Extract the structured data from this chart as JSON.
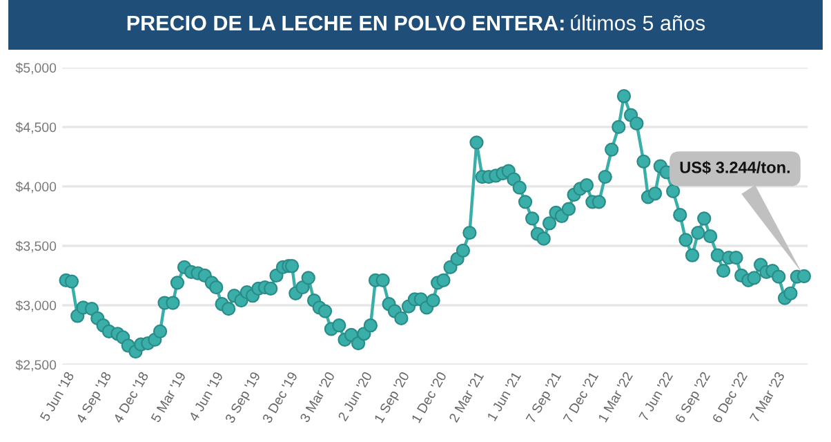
{
  "chart_data": {
    "type": "line",
    "title": "PRECIO DE LA LECHE EN POLVO ENTERA:",
    "subtitle": "últimos 5 años",
    "x": [
      "2018-06-05",
      "2018-06-19",
      "2018-07-03",
      "2018-07-17",
      "2018-08-07",
      "2018-08-21",
      "2018-09-04",
      "2018-09-18",
      "2018-10-09",
      "2018-10-22",
      "2018-11-04",
      "2018-11-22",
      "2018-12-05",
      "2018-12-22",
      "2019-01-08",
      "2019-01-21",
      "2019-02-01",
      "2019-02-21",
      "2019-03-04",
      "2019-03-21",
      "2019-04-07",
      "2019-04-23",
      "2019-05-10",
      "2019-05-27",
      "2019-06-07",
      "2019-06-21",
      "2019-07-07",
      "2019-07-21",
      "2019-08-07",
      "2019-08-21",
      "2019-09-04",
      "2019-09-18",
      "2019-10-04",
      "2019-10-18",
      "2019-11-01",
      "2019-11-17",
      "2019-12-01",
      "2019-12-09",
      "2019-12-18",
      "2020-01-04",
      "2020-01-18",
      "2020-02-01",
      "2020-02-14",
      "2020-02-28",
      "2020-03-14",
      "2020-04-02",
      "2020-04-16",
      "2020-05-02",
      "2020-05-19",
      "2020-06-02",
      "2020-06-18",
      "2020-06-30",
      "2020-07-18",
      "2020-08-02",
      "2020-08-16",
      "2020-09-01",
      "2020-09-19",
      "2020-10-04",
      "2020-10-19",
      "2020-11-02",
      "2020-11-18",
      "2020-11-29",
      "2020-12-13",
      "2020-12-30",
      "2021-01-16",
      "2021-01-30",
      "2021-02-15",
      "2021-03-04",
      "2021-03-18",
      "2021-04-03",
      "2021-04-20",
      "2021-05-07",
      "2021-05-21",
      "2021-06-03",
      "2021-06-17",
      "2021-07-01",
      "2021-07-18",
      "2021-07-31",
      "2021-08-15",
      "2021-08-29",
      "2021-09-14",
      "2021-09-28",
      "2021-10-15",
      "2021-10-28",
      "2021-11-12",
      "2021-11-28",
      "2021-12-12",
      "2021-12-28",
      "2022-01-12",
      "2022-01-28",
      "2022-02-14",
      "2022-02-27",
      "2022-03-16",
      "2022-03-30",
      "2022-04-16",
      "2022-04-27",
      "2022-05-14",
      "2022-05-27",
      "2022-06-11",
      "2022-06-27",
      "2022-07-14",
      "2022-07-28",
      "2022-08-13",
      "2022-08-27",
      "2022-09-11",
      "2022-09-26",
      "2022-10-14",
      "2022-10-28",
      "2022-11-10",
      "2022-11-28",
      "2022-12-11",
      "2022-12-28",
      "2023-01-11",
      "2023-01-27",
      "2023-02-10",
      "2023-02-25",
      "2023-03-12",
      "2023-03-27",
      "2023-04-10",
      "2023-04-26",
      "2023-05-13"
    ],
    "series": [
      {
        "color": "#3aaea9",
        "values": [
          3210,
          3200,
          2910,
          2980,
          2970,
          2890,
          2830,
          2780,
          2760,
          2730,
          2660,
          2610,
          2670,
          2680,
          2710,
          2780,
          3020,
          3020,
          3190,
          3320,
          3280,
          3270,
          3250,
          3190,
          3150,
          3010,
          2970,
          3080,
          3040,
          3110,
          3080,
          3140,
          3150,
          3140,
          3250,
          3320,
          3330,
          3330,
          3100,
          3150,
          3230,
          3040,
          2980,
          2950,
          2800,
          2830,
          2710,
          2750,
          2680,
          2760,
          2830,
          3210,
          3210,
          3010,
          2950,
          2890,
          2990,
          3050,
          3050,
          2980,
          3040,
          3190,
          3210,
          3320,
          3390,
          3460,
          3610,
          4370,
          4080,
          4080,
          4090,
          4110,
          4130,
          4060,
          3990,
          3870,
          3730,
          3600,
          3560,
          3690,
          3780,
          3750,
          3810,
          3930,
          3980,
          4010,
          3870,
          3870,
          4080,
          4310,
          4500,
          4760,
          4600,
          4530,
          4210,
          3910,
          3940,
          4170,
          4120,
          3960,
          3760,
          3550,
          3420,
          3610,
          3730,
          3580,
          3420,
          3290,
          3400,
          3400,
          3250,
          3210,
          3230,
          3340,
          3280,
          3290,
          3240,
          3060,
          3100,
          3240,
          3244
        ]
      }
    ],
    "xlim": [
      "2018-05-27",
      "2023-05-22"
    ],
    "xticks": [
      {
        "value": "2018-06-05",
        "label": "5 Jun '18"
      },
      {
        "value": "2018-09-04",
        "label": "4 Sep '18"
      },
      {
        "value": "2018-12-04",
        "label": "4 Dec '18"
      },
      {
        "value": "2019-03-05",
        "label": "5 Mar '19"
      },
      {
        "value": "2019-06-04",
        "label": "4 Jun '19"
      },
      {
        "value": "2019-09-03",
        "label": "3 Sep '19"
      },
      {
        "value": "2019-12-03",
        "label": "3 Dec '19"
      },
      {
        "value": "2020-03-03",
        "label": "3 Mar '20"
      },
      {
        "value": "2020-06-02",
        "label": "2 Jun '20"
      },
      {
        "value": "2020-09-01",
        "label": "1 Sep '20"
      },
      {
        "value": "2020-12-01",
        "label": "1 Dec '20"
      },
      {
        "value": "2021-03-02",
        "label": "2 Mar '21"
      },
      {
        "value": "2021-06-01",
        "label": "1 Jun '21"
      },
      {
        "value": "2021-09-07",
        "label": "7 Sep '21"
      },
      {
        "value": "2021-12-07",
        "label": "7 Dec '21"
      },
      {
        "value": "2022-03-01",
        "label": "1 Mar '22"
      },
      {
        "value": "2022-06-07",
        "label": "7 Jun '22"
      },
      {
        "value": "2022-09-06",
        "label": "6 Sep '22"
      },
      {
        "value": "2022-12-06",
        "label": "6 Dec '22"
      },
      {
        "value": "2023-03-07",
        "label": "7 Mar '23"
      }
    ],
    "ylim": [
      2500,
      5000
    ],
    "yticks": [
      {
        "value": 2500,
        "label": "$2,500"
      },
      {
        "value": 3000,
        "label": "$3,000"
      },
      {
        "value": 3500,
        "label": "$3,500"
      },
      {
        "value": 4000,
        "label": "$4,000"
      },
      {
        "value": 4500,
        "label": "$4,500"
      },
      {
        "value": 5000,
        "label": "$5,000"
      }
    ],
    "grid": "y",
    "marker": "circle",
    "line_style": "solid",
    "annotations": [
      "US$ 3.244/ton."
    ]
  }
}
